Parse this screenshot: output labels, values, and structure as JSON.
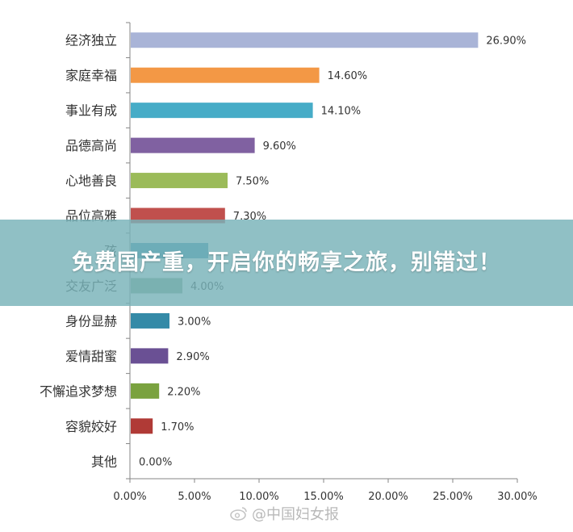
{
  "chart_data": {
    "type": "bar",
    "orientation": "horizontal",
    "categories": [
      "经济独立",
      "家庭幸福",
      "事业有成",
      "品德高尚",
      "心地善良",
      "品位高雅",
      "孩",
      "交友广泛",
      "身份显赫",
      "爱情甜蜜",
      "不懈追求梦想",
      "容貌姣好",
      "其他"
    ],
    "values": [
      26.9,
      14.6,
      14.1,
      9.6,
      7.5,
      7.3,
      6.0,
      4.0,
      3.0,
      2.9,
      2.2,
      1.7,
      0.0
    ],
    "value_labels": [
      "26.90%",
      "14.60%",
      "14.10%",
      "9.60%",
      "7.50%",
      "7.30%",
      "",
      "4.00%",
      "3.00%",
      "2.90%",
      "2.20%",
      "1.70%",
      "0.00%"
    ],
    "colors": [
      "#a9b4d7",
      "#f39845",
      "#46acc7",
      "#8061a1",
      "#9bbb59",
      "#c0504d",
      "#4197b7",
      "#83a990",
      "#348aa7",
      "#6a5094",
      "#7aa23f",
      "#b03a36",
      "#8eb4e3"
    ],
    "xlim": [
      0,
      30
    ],
    "x_ticks": [
      "0.00%",
      "5.00%",
      "10.00%",
      "15.00%",
      "20.00%",
      "25.00%",
      "30.00%"
    ],
    "title": "",
    "xlabel": "",
    "ylabel": ""
  },
  "overlay": {
    "banner_text": "免费国产重，开启你的畅享之旅，别错过！"
  },
  "watermark": {
    "text": "@中国妇女报",
    "icon": "weibo-icon"
  }
}
